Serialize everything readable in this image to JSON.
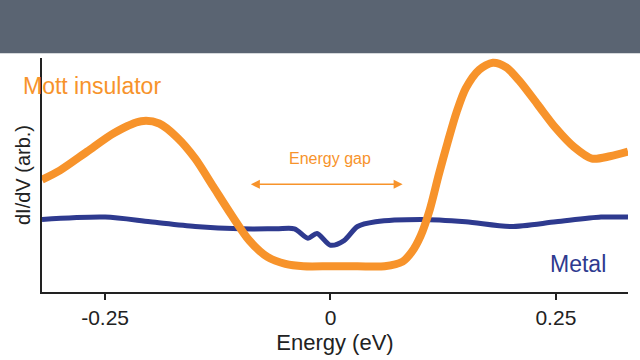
{
  "chart_data": {
    "type": "line",
    "x_label": "Energy (eV)",
    "y_label": "dI/dV (arb.)",
    "xlim": [
      -0.32,
      0.33
    ],
    "xticks": [
      -0.25,
      0,
      0.25
    ],
    "ylim": [
      0,
      1
    ],
    "tick_labels": "x",
    "grid": false,
    "series": [
      {
        "name": "Mott insulator",
        "color": "#f7932b",
        "line_style": "solid",
        "label_at": {
          "x": -0.265,
          "y": 0.88
        },
        "x": [
          -0.32,
          -0.3,
          -0.27,
          -0.24,
          -0.21,
          -0.19,
          -0.17,
          -0.15,
          -0.13,
          -0.11,
          -0.09,
          -0.07,
          -0.05,
          -0.03,
          0,
          0.03,
          0.06,
          0.08,
          0.09,
          0.1,
          0.11,
          0.12,
          0.13,
          0.14,
          0.15,
          0.165,
          0.18,
          0.195,
          0.21,
          0.23,
          0.25,
          0.27,
          0.29,
          0.31,
          0.33
        ],
        "values": [
          0.48,
          0.52,
          0.6,
          0.68,
          0.73,
          0.72,
          0.66,
          0.57,
          0.45,
          0.33,
          0.22,
          0.15,
          0.12,
          0.11,
          0.11,
          0.11,
          0.11,
          0.13,
          0.17,
          0.24,
          0.35,
          0.5,
          0.64,
          0.77,
          0.87,
          0.95,
          0.98,
          0.96,
          0.9,
          0.8,
          0.7,
          0.62,
          0.57,
          0.58,
          0.6
        ]
      },
      {
        "name": "Metal",
        "color": "#2e3a8f",
        "line_style": "solid",
        "label_at": {
          "x": 0.275,
          "y": 0.12
        },
        "x": [
          -0.32,
          -0.25,
          -0.2,
          -0.15,
          -0.1,
          -0.06,
          -0.04,
          -0.025,
          -0.015,
          0,
          0.015,
          0.03,
          0.05,
          0.1,
          0.15,
          0.2,
          0.25,
          0.3,
          0.33
        ],
        "values": [
          0.31,
          0.32,
          0.3,
          0.28,
          0.27,
          0.27,
          0.27,
          0.23,
          0.25,
          0.2,
          0.22,
          0.28,
          0.3,
          0.31,
          0.3,
          0.28,
          0.3,
          0.32,
          0.32
        ]
      }
    ],
    "annotations": [
      {
        "text": "Energy gap",
        "x": 0,
        "y": 0.57,
        "color": "#f7932b",
        "span": [
          -0.09,
          0.08
        ],
        "span_y": 0.46
      }
    ]
  }
}
